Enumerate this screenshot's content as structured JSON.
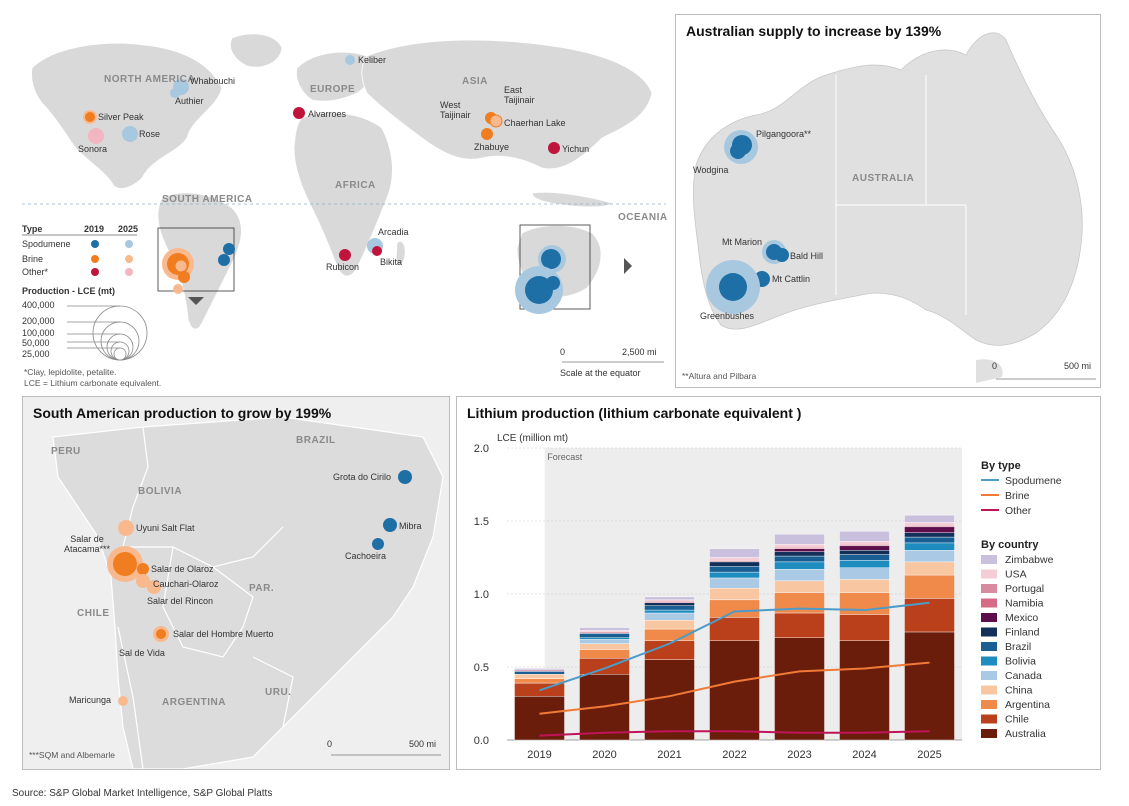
{
  "world_map": {
    "regions": [
      "NORTH AMERICA",
      "EUROPE",
      "ASIA",
      "AFRICA",
      "SOUTH AMERICA",
      "OCEANIA"
    ],
    "labels": {
      "whabouchi": "Whabouchi",
      "authier": "Authier",
      "silver_peak": "Silver Peak",
      "rose": "Rose",
      "sonora": "Sonora",
      "keliber": "Keliber",
      "alvarroes": "Alvarroes",
      "west_taijinair": "West Taijinair",
      "east_taijinair": "East Taijinair",
      "chaerhan_lake": "Chaerhan Lake",
      "zhabuye": "Zhabuye",
      "yichun": "Yichun",
      "arcadia": "Arcadia",
      "rubicon": "Rubicon",
      "bikita": "Bikita"
    },
    "legend": {
      "type_label": "Type",
      "year_a": "2019",
      "year_b": "2025",
      "types": [
        "Spodumene",
        "Brine",
        "Other*"
      ],
      "production_label": "Production - LCE (mt)",
      "sizes": [
        "400,000",
        "200,000",
        "100,000",
        "50,000",
        "25,000"
      ],
      "footnote_1": "*Clay, lepidolite, petalite.",
      "footnote_2": "LCE = Lithium carbonate equivalent."
    },
    "scale": {
      "zero": "0",
      "max": "2,500 mi",
      "caption": "Scale at the equator"
    }
  },
  "australia": {
    "title": "Australian supply to increase by 139%",
    "region": "AUSTRALIA",
    "labels": {
      "pilgangoora": "Pilgangoora**",
      "wodgina": "Wodgina",
      "mt_marion": "Mt Marion",
      "bald_hill": "Bald Hill",
      "mt_cattlin": "Mt Cattlin",
      "greenbushes": "Greenbushes"
    },
    "footnote": "**Altura and Pilbara",
    "scale_zero": "0",
    "scale_max": "500 mi"
  },
  "south_america": {
    "title": "South American production to grow by 199%",
    "regions": [
      "PERU",
      "BOLIVIA",
      "BRAZIL",
      "CHILE",
      "PAR.",
      "ARGENTINA",
      "URU."
    ],
    "labels": {
      "uyuni": "Uyuni Salt Flat",
      "atacama": "Salar de Atacama***",
      "olaroz": "Salar de Olaroz",
      "cauchari": "Cauchari-Olaroz",
      "rincon": "Salar del Rincon",
      "hombre_muerto": "Salar del Hombre Muerto",
      "sal_de_vida": "Sal de Vida",
      "maricunga": "Maricunga",
      "grota": "Grota do Cirilo",
      "mibra": "Mibra",
      "cachoeira": "Cachoeira"
    },
    "footnote": "***SQM and Albemarle",
    "scale_zero": "0",
    "scale_max": "500 mi"
  },
  "colors": {
    "spodumene_2019": "#1d6fa5",
    "spodumene_2025": "#a8c8e0",
    "brine_2019": "#f07d1f",
    "brine_2025": "#f9b98f",
    "other_2019": "#c0143c",
    "other_2025": "#f2b6c3"
  },
  "chart_data": {
    "type": "bar",
    "title": "Lithium production (lithium carbonate equivalent )",
    "ylabel": "LCE (million mt)",
    "ylim": [
      0,
      2.0
    ],
    "yticks": [
      "0.0",
      "0.5",
      "1.0",
      "1.5",
      "2.0"
    ],
    "forecast_label": "Forecast",
    "categories": [
      "2019",
      "2020",
      "2021",
      "2022",
      "2023",
      "2024",
      "2025"
    ],
    "legend_type_title": "By type",
    "legend_country_title": "By country",
    "series": [
      {
        "name": "Australia",
        "color": "#6b1d0c",
        "values": [
          0.3,
          0.45,
          0.55,
          0.68,
          0.7,
          0.68,
          0.74
        ]
      },
      {
        "name": "Chile",
        "color": "#b9401a",
        "values": [
          0.09,
          0.11,
          0.13,
          0.16,
          0.17,
          0.18,
          0.23
        ]
      },
      {
        "name": "Argentina",
        "color": "#f08a4a",
        "values": [
          0.03,
          0.06,
          0.08,
          0.12,
          0.14,
          0.15,
          0.16
        ]
      },
      {
        "name": "China",
        "color": "#f8c6a1",
        "values": [
          0.03,
          0.04,
          0.06,
          0.08,
          0.08,
          0.09,
          0.09
        ]
      },
      {
        "name": "Canada",
        "color": "#a9c9e4",
        "values": [
          0.0,
          0.03,
          0.05,
          0.07,
          0.08,
          0.08,
          0.08
        ]
      },
      {
        "name": "Bolivia",
        "color": "#1f8cbf",
        "values": [
          0.0,
          0.01,
          0.02,
          0.04,
          0.05,
          0.05,
          0.05
        ]
      },
      {
        "name": "Brazil",
        "color": "#1a5f93",
        "values": [
          0.02,
          0.03,
          0.03,
          0.04,
          0.04,
          0.04,
          0.04
        ]
      },
      {
        "name": "Finland",
        "color": "#12305a",
        "values": [
          0.0,
          0.0,
          0.02,
          0.03,
          0.03,
          0.03,
          0.03
        ]
      },
      {
        "name": "Mexico",
        "color": "#5c0f4a",
        "values": [
          0.0,
          0.0,
          0.0,
          0.0,
          0.02,
          0.03,
          0.04
        ]
      },
      {
        "name": "Namibia",
        "color": "#d76a84",
        "values": [
          0.0,
          0.0,
          0.0,
          0.0,
          0.0,
          0.0,
          0.0
        ]
      },
      {
        "name": "Portugal",
        "color": "#d88b9f",
        "values": [
          0.01,
          0.01,
          0.01,
          0.01,
          0.01,
          0.01,
          0.01
        ]
      },
      {
        "name": "USA",
        "color": "#f4cdd7",
        "values": [
          0.0,
          0.01,
          0.01,
          0.02,
          0.02,
          0.02,
          0.02
        ]
      },
      {
        "name": "Zimbabwe",
        "color": "#c9c0dd",
        "values": [
          0.01,
          0.02,
          0.02,
          0.06,
          0.07,
          0.07,
          0.05
        ]
      }
    ],
    "lines": [
      {
        "name": "Spodumene",
        "color": "#4d9bc8",
        "values": [
          0.34,
          0.49,
          0.66,
          0.88,
          0.9,
          0.89,
          0.94
        ]
      },
      {
        "name": "Brine",
        "color": "#f07a36",
        "values": [
          0.18,
          0.23,
          0.3,
          0.4,
          0.47,
          0.49,
          0.53
        ]
      },
      {
        "name": "Other",
        "color": "#c0145a",
        "values": [
          0.03,
          0.05,
          0.06,
          0.06,
          0.05,
          0.05,
          0.06
        ]
      }
    ]
  },
  "source": "Source: S&P Global Market Intelligence, S&P Global Platts"
}
